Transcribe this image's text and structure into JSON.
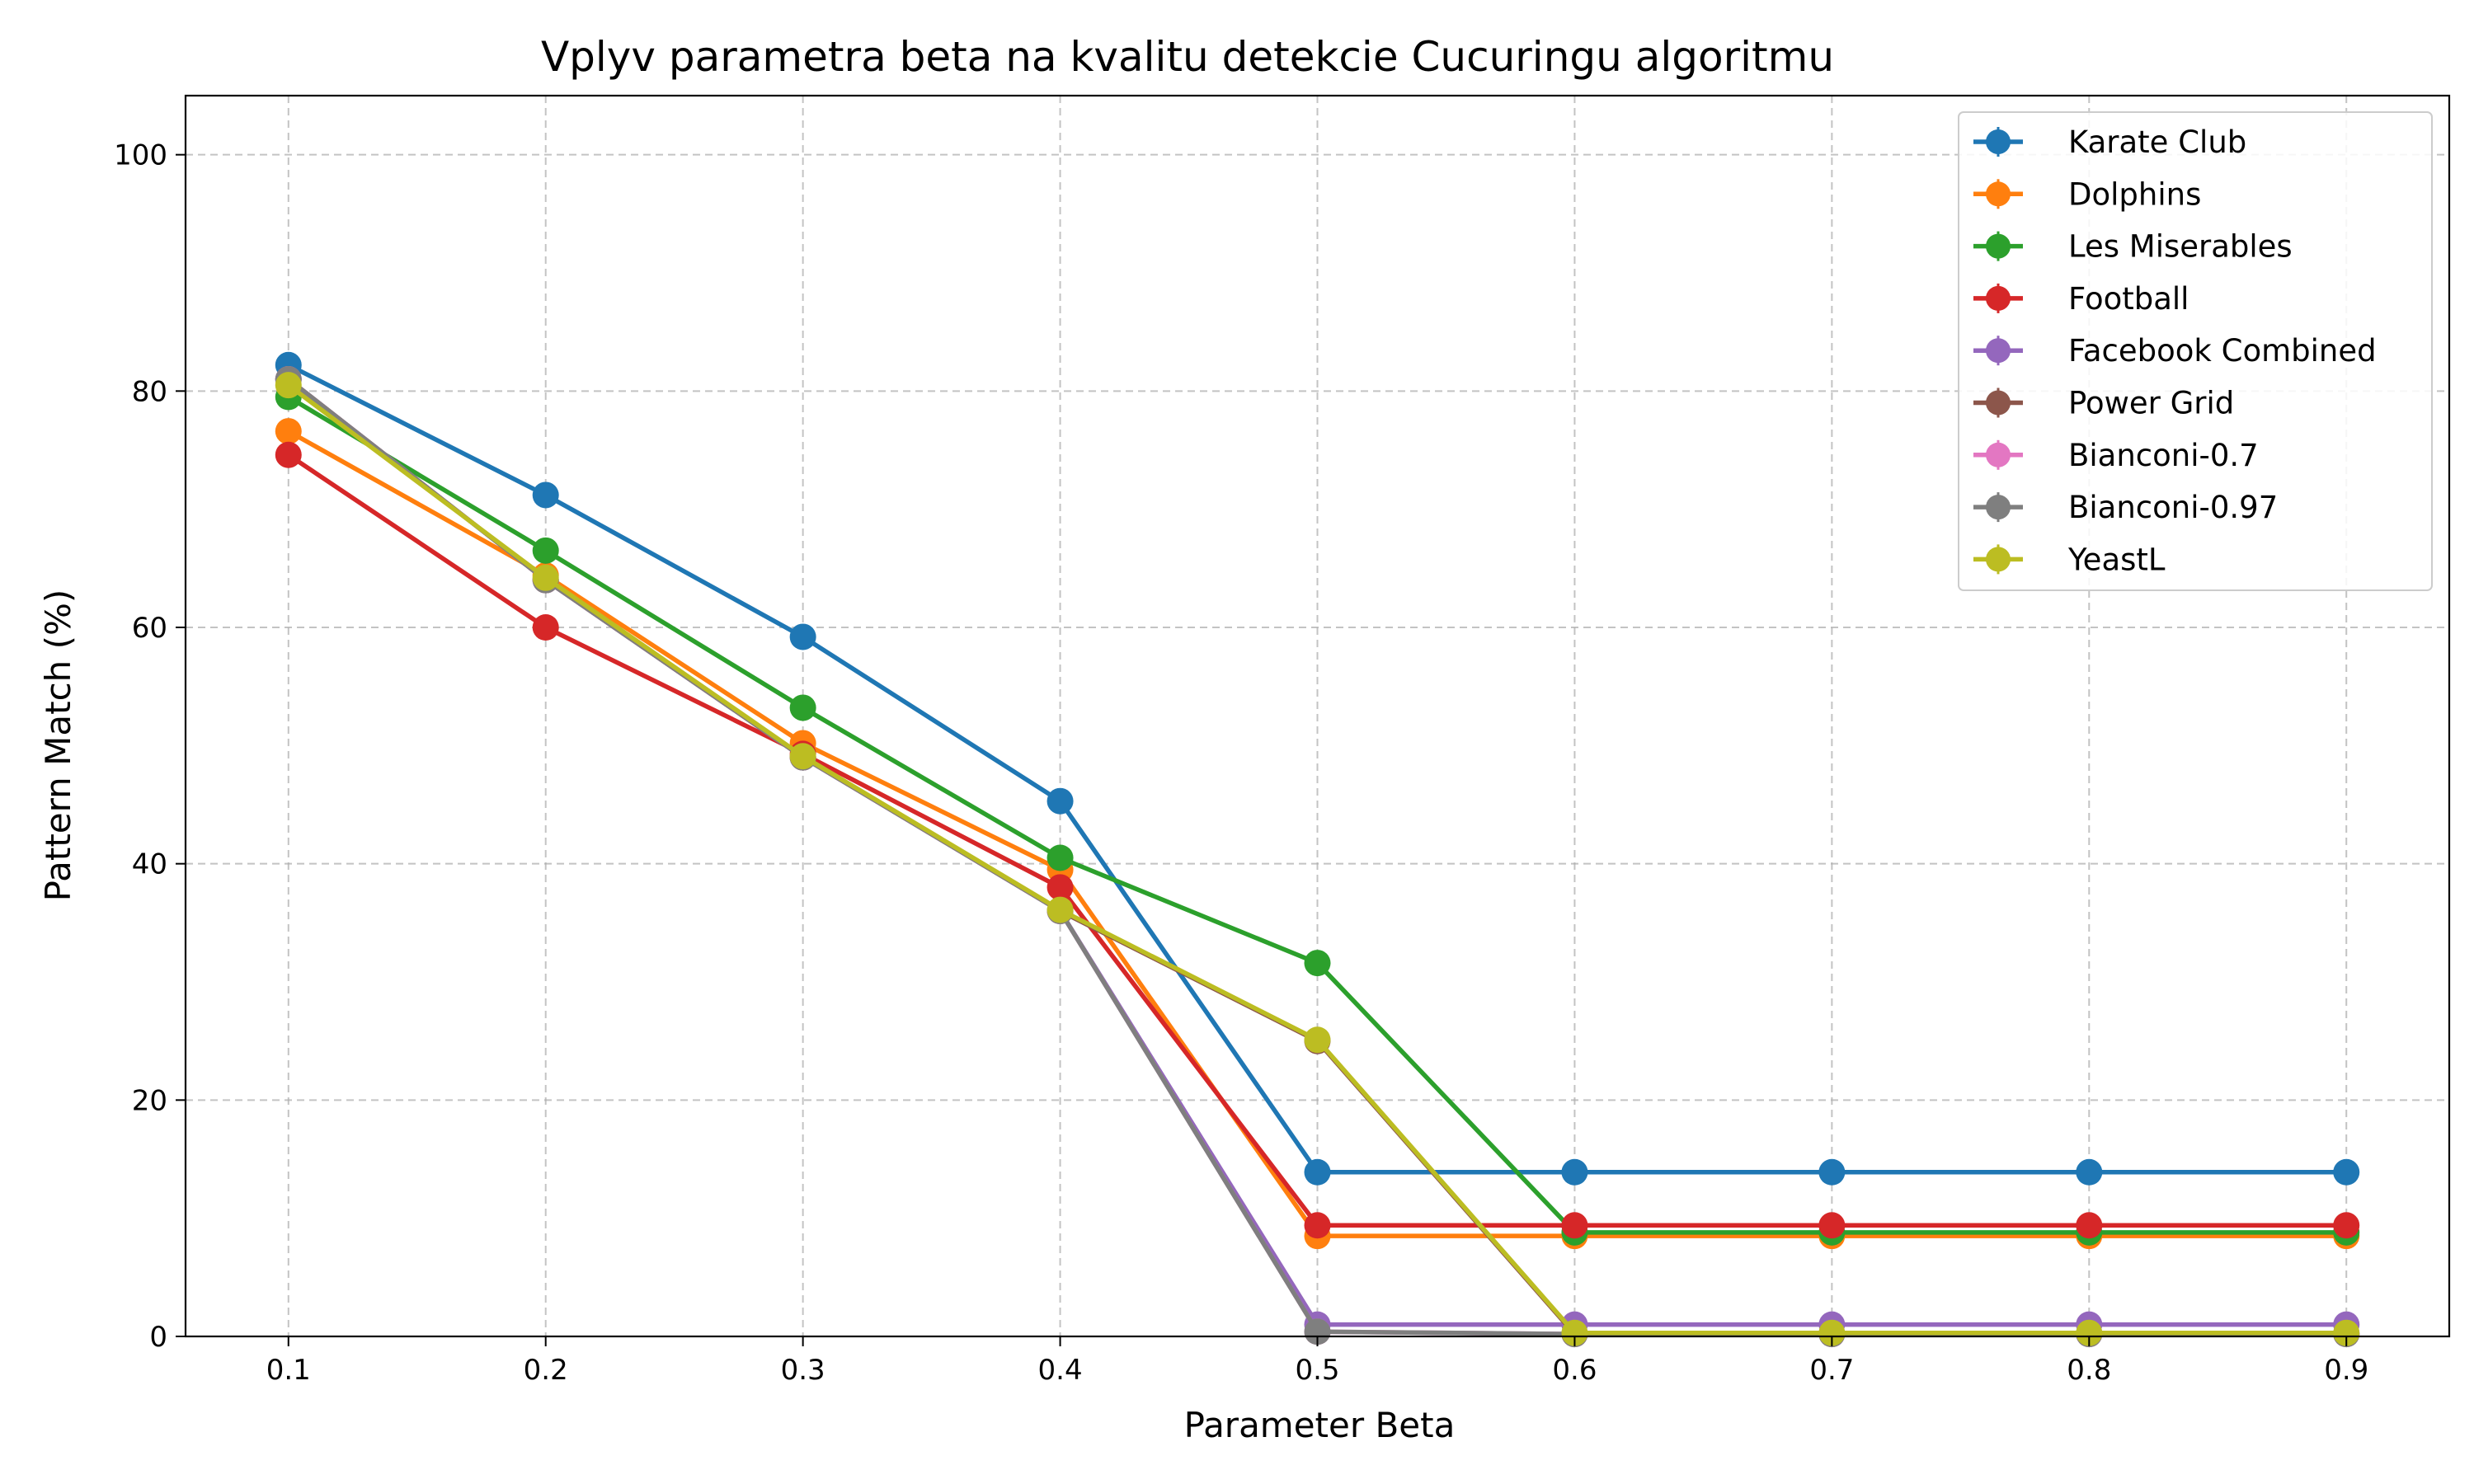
{
  "chart_data": {
    "type": "line",
    "title": "Vplyv parametra beta na kvalitu detekcie Cucuringu algoritmu",
    "xlabel": "Parameter Beta",
    "ylabel": "Pattern Match (%)",
    "x": [
      0.1,
      0.2,
      0.3,
      0.4,
      0.5,
      0.6,
      0.7,
      0.8,
      0.9
    ],
    "x_tick_labels": [
      "0.1",
      "0.2",
      "0.3",
      "0.4",
      "0.5",
      "0.6",
      "0.7",
      "0.8",
      "0.9"
    ],
    "xlim": [
      0.06,
      0.94
    ],
    "ylim": [
      0,
      105
    ],
    "y_ticks": [
      0,
      20,
      40,
      60,
      80,
      100
    ],
    "y_tick_labels": [
      "0",
      "20",
      "40",
      "60",
      "80",
      "100"
    ],
    "grid": true,
    "legend_position": "top-right",
    "series": [
      {
        "name": "Karate Club",
        "color": "#1f77b4",
        "values": [
          82.2,
          71.2,
          59.2,
          45.3,
          13.9,
          13.9,
          13.9,
          13.9,
          13.9
        ]
      },
      {
        "name": "Dolphins",
        "color": "#ff7f0e",
        "values": [
          76.6,
          64.4,
          50.2,
          39.5,
          8.5,
          8.5,
          8.5,
          8.5,
          8.5
        ]
      },
      {
        "name": "Les Miserables",
        "color": "#2ca02c",
        "values": [
          79.5,
          66.5,
          53.2,
          40.5,
          31.6,
          8.8,
          8.8,
          8.8,
          8.8
        ]
      },
      {
        "name": "Football",
        "color": "#d62728",
        "values": [
          74.6,
          60.0,
          49.3,
          38.0,
          9.4,
          9.4,
          9.4,
          9.4,
          9.4
        ]
      },
      {
        "name": "Facebook Combined",
        "color": "#9467bd",
        "values": [
          81.0,
          64.0,
          49.0,
          36.0,
          1.0,
          1.0,
          1.0,
          1.0,
          1.0
        ]
      },
      {
        "name": "Power Grid",
        "color": "#8c564b",
        "values": [
          81.0,
          64.0,
          49.0,
          36.0,
          25.0,
          0.2,
          0.2,
          0.2,
          0.2
        ]
      },
      {
        "name": "Bianconi-0.7",
        "color": "#e377c2",
        "values": [
          81.0,
          64.0,
          49.0,
          36.0,
          0.4,
          0.2,
          0.2,
          0.2,
          0.2
        ]
      },
      {
        "name": "Bianconi-0.97",
        "color": "#7f7f7f",
        "values": [
          81.0,
          64.0,
          49.0,
          36.0,
          0.4,
          0.2,
          0.2,
          0.2,
          0.2
        ]
      },
      {
        "name": "YeastL",
        "color": "#bcbd22",
        "values": [
          80.5,
          64.2,
          49.1,
          36.1,
          25.1,
          0.3,
          0.3,
          0.3,
          0.3
        ]
      }
    ]
  }
}
